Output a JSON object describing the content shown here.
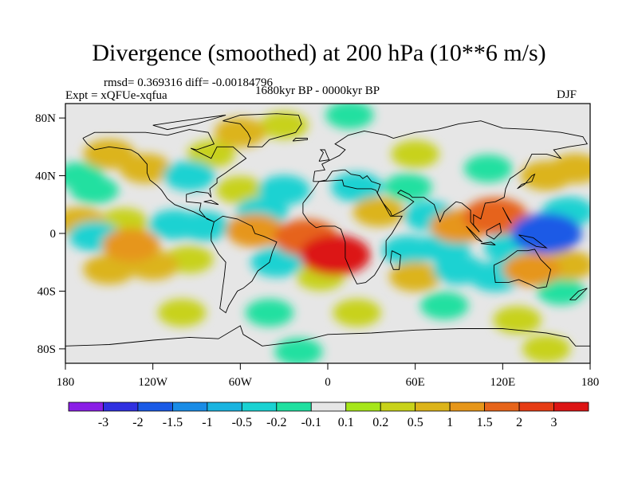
{
  "title": "Divergence (smoothed) at 200 hPa (10**6 m/s)",
  "stats": "rmsd= 0.369316 diff= -0.00184796",
  "period": "1680kyr BP - 0000kyr BP",
  "experiment": "Expt = xQFUe-xqfua",
  "season": "DJF",
  "chart_data": {
    "type": "heatmap",
    "projection": "cylindrical equidistant",
    "variable": "200 hPa divergence difference (smoothed)",
    "units": "10**6 m/s",
    "xlim": [
      -180,
      180
    ],
    "ylim": [
      -90,
      90
    ],
    "x_ticks": [
      {
        "value": -180,
        "label": "180"
      },
      {
        "value": -120,
        "label": "120W"
      },
      {
        "value": -60,
        "label": "60W"
      },
      {
        "value": 0,
        "label": "0"
      },
      {
        "value": 60,
        "label": "60E"
      },
      {
        "value": 120,
        "label": "120E"
      },
      {
        "value": 180,
        "label": "180"
      }
    ],
    "y_ticks": [
      {
        "value": 80,
        "label": "80N"
      },
      {
        "value": 40,
        "label": "40N"
      },
      {
        "value": 0,
        "label": "0"
      },
      {
        "value": -40,
        "label": "40S"
      },
      {
        "value": -80,
        "label": "80S"
      }
    ],
    "levels": [
      -3,
      -2,
      -1.5,
      -1,
      -0.5,
      -0.2,
      -0.1,
      0.1,
      0.2,
      0.5,
      1,
      1.5,
      2,
      3
    ],
    "colors": [
      "#8a1ee6",
      "#3030e0",
      "#1a5ae6",
      "#1a8ce6",
      "#1ab4e0",
      "#1ad2d2",
      "#20e0a0",
      "#e6e6e6",
      "#a6e61a",
      "#c8d21a",
      "#dcb41a",
      "#e6961a",
      "#e6641a",
      "#e63c14",
      "#dc1414"
    ],
    "blobs": [
      {
        "lon": -170,
        "lat": 8,
        "value": 0.5
      },
      {
        "lon": -160,
        "lat": -2,
        "value": -0.5
      },
      {
        "lon": -140,
        "lat": 8,
        "value": 0.2
      },
      {
        "lon": -135,
        "lat": -8,
        "value": 1
      },
      {
        "lon": -150,
        "lat": -25,
        "value": 0.5
      },
      {
        "lon": -120,
        "lat": -22,
        "value": 0.5
      },
      {
        "lon": -95,
        "lat": -18,
        "value": 0.2
      },
      {
        "lon": -105,
        "lat": 6,
        "value": -0.5
      },
      {
        "lon": -85,
        "lat": 5,
        "value": -0.5
      },
      {
        "lon": -150,
        "lat": 55,
        "value": 0.5
      },
      {
        "lon": -125,
        "lat": 45,
        "value": 0.5
      },
      {
        "lon": -160,
        "lat": 30,
        "value": -0.2
      },
      {
        "lon": -170,
        "lat": 40,
        "value": -0.2
      },
      {
        "lon": -95,
        "lat": 40,
        "value": -0.5
      },
      {
        "lon": -80,
        "lat": 55,
        "value": 0.2
      },
      {
        "lon": -60,
        "lat": 70,
        "value": 0.5
      },
      {
        "lon": -30,
        "lat": 75,
        "value": 0.2
      },
      {
        "lon": 15,
        "lat": 82,
        "value": -0.2
      },
      {
        "lon": -60,
        "lat": 30,
        "value": 0.2
      },
      {
        "lon": -30,
        "lat": 30,
        "value": -0.5
      },
      {
        "lon": -45,
        "lat": 15,
        "value": -0.5
      },
      {
        "lon": -50,
        "lat": 2,
        "value": 1
      },
      {
        "lon": -15,
        "lat": -3,
        "value": 1.5
      },
      {
        "lon": 5,
        "lat": -15,
        "value": 3
      },
      {
        "lon": -35,
        "lat": -20,
        "value": -0.5
      },
      {
        "lon": -5,
        "lat": -30,
        "value": 0.2
      },
      {
        "lon": 20,
        "lat": 32,
        "value": -0.5
      },
      {
        "lon": 55,
        "lat": 32,
        "value": -0.2
      },
      {
        "lon": 35,
        "lat": 15,
        "value": 0.5
      },
      {
        "lon": 70,
        "lat": 12,
        "value": -0.5
      },
      {
        "lon": 90,
        "lat": 5,
        "value": 1
      },
      {
        "lon": 115,
        "lat": 12,
        "value": 1.5
      },
      {
        "lon": 130,
        "lat": 5,
        "value": 0.5
      },
      {
        "lon": 150,
        "lat": 0,
        "value": -2
      },
      {
        "lon": 125,
        "lat": -10,
        "value": -0.5
      },
      {
        "lon": 165,
        "lat": 15,
        "value": -0.5
      },
      {
        "lon": 150,
        "lat": 40,
        "value": 0.5
      },
      {
        "lon": 170,
        "lat": 45,
        "value": 0.5
      },
      {
        "lon": 110,
        "lat": 45,
        "value": -0.2
      },
      {
        "lon": 60,
        "lat": 55,
        "value": 0.2
      },
      {
        "lon": 80,
        "lat": -10,
        "value": -0.5
      },
      {
        "lon": 55,
        "lat": -12,
        "value": -0.5
      },
      {
        "lon": 60,
        "lat": -30,
        "value": 0.5
      },
      {
        "lon": 90,
        "lat": -25,
        "value": -0.5
      },
      {
        "lon": 115,
        "lat": -30,
        "value": -0.5
      },
      {
        "lon": 140,
        "lat": -25,
        "value": 1
      },
      {
        "lon": 165,
        "lat": -22,
        "value": 0.5
      },
      {
        "lon": 160,
        "lat": -40,
        "value": -0.2
      },
      {
        "lon": -100,
        "lat": -55,
        "value": 0.2
      },
      {
        "lon": -40,
        "lat": -55,
        "value": -0.2
      },
      {
        "lon": 20,
        "lat": -55,
        "value": 0.2
      },
      {
        "lon": 80,
        "lat": -50,
        "value": -0.2
      },
      {
        "lon": 130,
        "lat": -60,
        "value": 0.2
      },
      {
        "lon": -20,
        "lat": -82,
        "value": -0.2
      },
      {
        "lon": 150,
        "lat": -80,
        "value": 0.2
      }
    ]
  },
  "legend": {
    "labels": [
      "-3",
      "-2",
      "-1.5",
      "-1",
      "-0.5",
      "-0.2",
      "-0.1",
      "0.1",
      "0.2",
      "0.5",
      "1",
      "1.5",
      "2",
      "3"
    ]
  }
}
